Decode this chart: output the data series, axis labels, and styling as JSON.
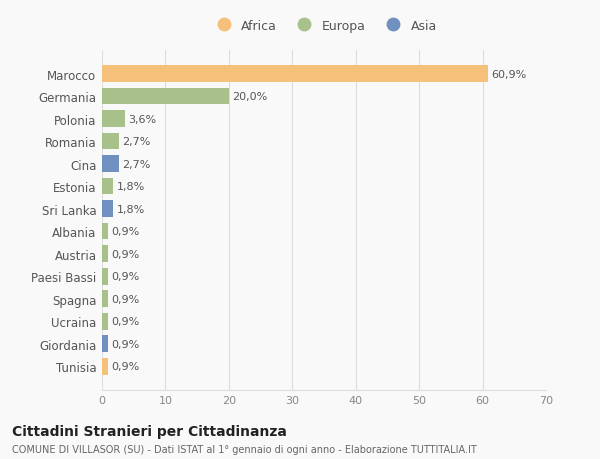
{
  "countries": [
    "Marocco",
    "Germania",
    "Polonia",
    "Romania",
    "Cina",
    "Estonia",
    "Sri Lanka",
    "Albania",
    "Austria",
    "Paesi Bassi",
    "Spagna",
    "Ucraina",
    "Giordania",
    "Tunisia"
  ],
  "values": [
    60.9,
    20.0,
    3.6,
    2.7,
    2.7,
    1.8,
    1.8,
    0.9,
    0.9,
    0.9,
    0.9,
    0.9,
    0.9,
    0.9
  ],
  "labels": [
    "60,9%",
    "20,0%",
    "3,6%",
    "2,7%",
    "2,7%",
    "1,8%",
    "1,8%",
    "0,9%",
    "0,9%",
    "0,9%",
    "0,9%",
    "0,9%",
    "0,9%",
    "0,9%"
  ],
  "continents": [
    "Africa",
    "Europa",
    "Europa",
    "Europa",
    "Asia",
    "Europa",
    "Asia",
    "Europa",
    "Europa",
    "Europa",
    "Europa",
    "Europa",
    "Asia",
    "Africa"
  ],
  "colors": {
    "Africa": "#F5C07A",
    "Europa": "#A8C08A",
    "Asia": "#7090C0"
  },
  "bg_color": "#f9f9f9",
  "grid_color": "#dddddd",
  "title": "Cittadini Stranieri per Cittadinanza",
  "subtitle": "COMUNE DI VILLASOR (SU) - Dati ISTAT al 1° gennaio di ogni anno - Elaborazione TUTTITALIA.IT",
  "xlim": [
    0,
    70
  ],
  "xticks": [
    0,
    10,
    20,
    30,
    40,
    50,
    60,
    70
  ],
  "bar_height": 0.75
}
